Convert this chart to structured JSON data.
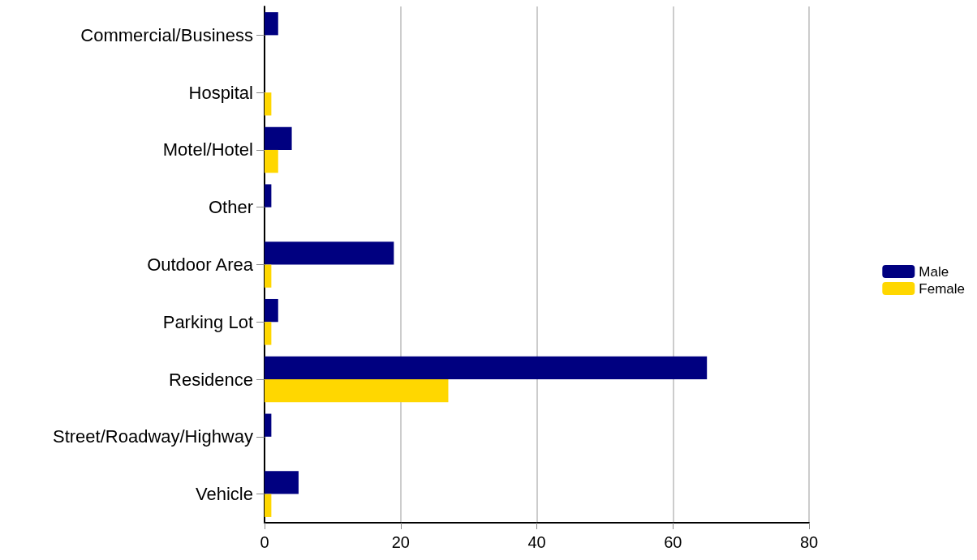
{
  "chart_data": {
    "type": "bar",
    "orientation": "horizontal",
    "categories": [
      "Commercial/Business",
      "Hospital",
      "Motel/Hotel",
      "Other",
      "Outdoor Area",
      "Parking Lot",
      "Residence",
      "Street/Roadway/Highway",
      "Vehicle"
    ],
    "series": [
      {
        "name": "Male",
        "color": "#000080",
        "values": [
          2,
          0,
          4,
          1,
          19,
          2,
          65,
          1,
          5
        ]
      },
      {
        "name": "Female",
        "color": "#ffd700",
        "values": [
          0,
          1,
          2,
          0,
          1,
          1,
          27,
          0,
          1
        ]
      }
    ],
    "xlim": [
      0,
      80
    ],
    "xticks": [
      0,
      20,
      40,
      60,
      80
    ],
    "grid": "x",
    "legend": "right"
  }
}
